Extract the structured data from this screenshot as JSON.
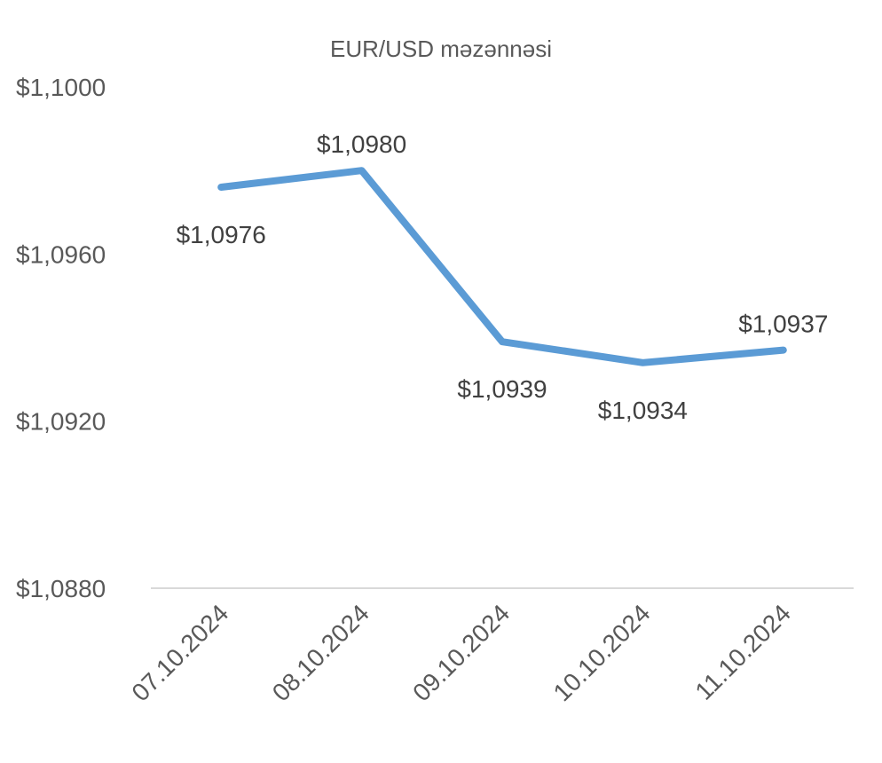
{
  "chart_data": {
    "type": "line",
    "title": "EUR/USD məzənnəsi",
    "categories": [
      "07.10.2024",
      "08.10.2024",
      "09.10.2024",
      "10.10.2024",
      "11.10.2024"
    ],
    "series": [
      {
        "values": [
          1.0976,
          1.098,
          1.0939,
          1.0934,
          1.0937
        ],
        "labels": [
          "$1,0976",
          "$1,0980",
          "$1,0939",
          "$1,0934",
          "$1,0937"
        ],
        "color": "#5B9BD5"
      }
    ],
    "y_ticks": [
      {
        "value": 1.088,
        "label": "$1,0880"
      },
      {
        "value": 1.092,
        "label": "$1,0920"
      },
      {
        "value": 1.096,
        "label": "$1,0960"
      },
      {
        "value": 1.1,
        "label": "$1,1000"
      }
    ],
    "ylim": [
      1.088,
      1.1
    ],
    "grid": false,
    "legend": "none",
    "axis_color": "#D9D9D9"
  }
}
